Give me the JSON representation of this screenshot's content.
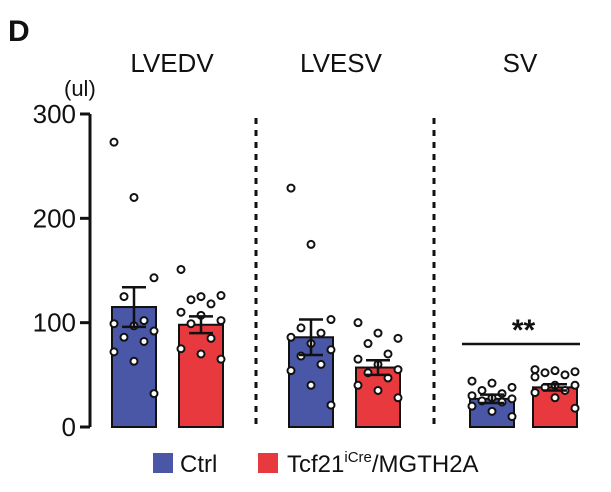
{
  "panel_label": "D",
  "unit_label": "(ul)",
  "chart_data": {
    "type": "bar",
    "categories": [
      "LVEDV",
      "LVESV",
      "SV"
    ],
    "ylim": [
      0,
      300
    ],
    "yticks": [
      0,
      100,
      200,
      300
    ],
    "grid": false,
    "legend_position": "bottom",
    "series": [
      {
        "name": "Ctrl",
        "color": "#4a56a6",
        "values": [
          115,
          86,
          27
        ],
        "sem": [
          19,
          17,
          4
        ],
        "points": [
          [
            273,
            220,
            143,
            125,
            102,
            99,
            97,
            92,
            86,
            82,
            72,
            63,
            32
          ],
          [
            229,
            175,
            103,
            95,
            90,
            86,
            80,
            74,
            68,
            60,
            54,
            40,
            21
          ],
          [
            44,
            42,
            38,
            35,
            32,
            30,
            28,
            27,
            25,
            24,
            20,
            15,
            10
          ]
        ]
      },
      {
        "name": "Tcf21iCre/MGTH2A",
        "color": "#e83a3e",
        "values": [
          98,
          57,
          38
        ],
        "sem": [
          8,
          7,
          3
        ],
        "points": [
          [
            151,
            125,
            126,
            122,
            118,
            110,
            107,
            102,
            99,
            85,
            75,
            70,
            65
          ],
          [
            100,
            90,
            85,
            80,
            70,
            65,
            60,
            55,
            52,
            47,
            40,
            35,
            28
          ],
          [
            55,
            54,
            53,
            52,
            50,
            48,
            40,
            40,
            38,
            35,
            33,
            28,
            18
          ]
        ]
      }
    ],
    "annotations": [
      {
        "text": "**",
        "category": "SV"
      }
    ]
  },
  "legend": {
    "ctrl_label": "Ctrl",
    "tcf_main": "Tcf21",
    "tcf_sup": "iCre",
    "tcf_suffix": "/MGTH2A"
  }
}
